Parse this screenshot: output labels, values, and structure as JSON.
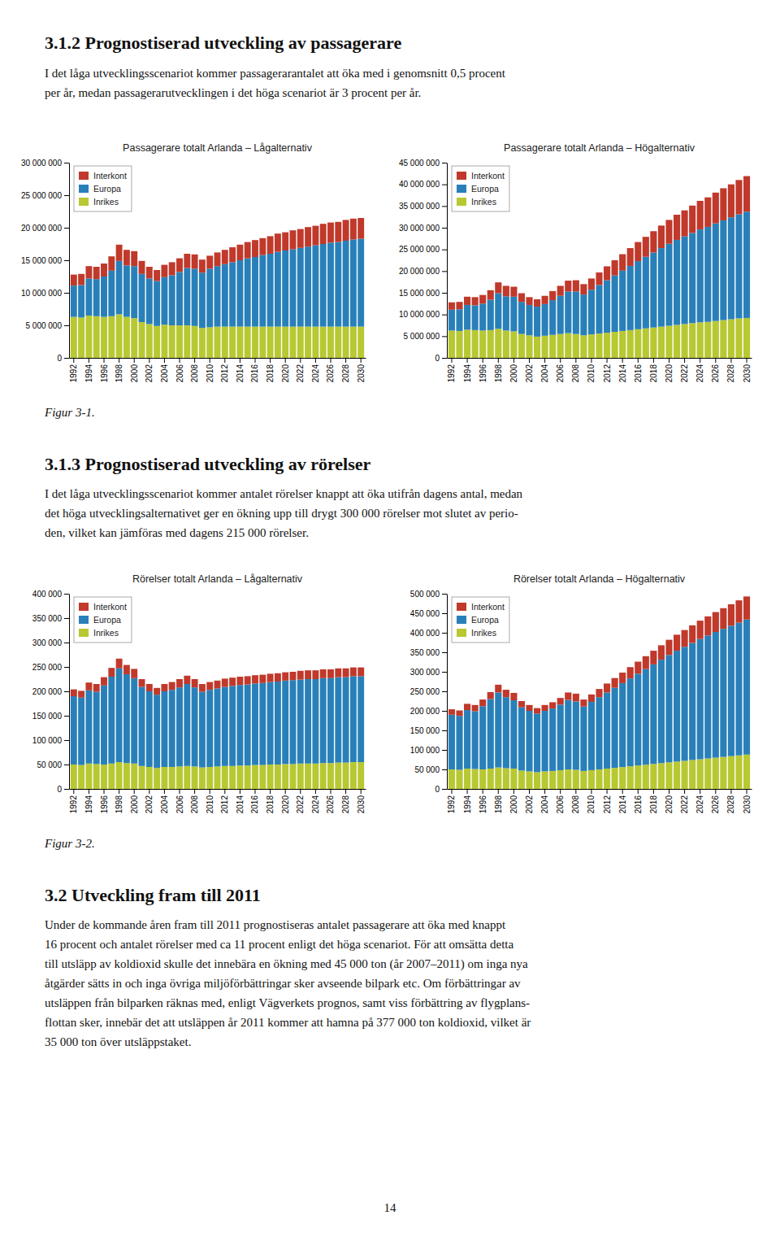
{
  "chart_data": [
    {
      "type": "bar",
      "title": "Passagerare totalt Arlanda – Lågalternativ",
      "categories": [
        "1992",
        null,
        "1994",
        null,
        "1996",
        null,
        "1998",
        null,
        "2000",
        null,
        "2002",
        null,
        "2004",
        null,
        "2006",
        null,
        "2008",
        null,
        "2010",
        null,
        "2012",
        null,
        "2014",
        null,
        "2016",
        null,
        "2018",
        null,
        "2020",
        null,
        "2022",
        null,
        "2024",
        null,
        "2026",
        null,
        "2028",
        null,
        "2030"
      ],
      "series": [
        {
          "name": "Inrikes",
          "color": "#b8c832",
          "values": [
            6300000,
            6200000,
            6500000,
            6400000,
            6300000,
            6400000,
            6700000,
            6300000,
            6100000,
            5500000,
            5200000,
            4900000,
            5100000,
            5000000,
            5000000,
            5000000,
            4900000,
            4600000,
            4700000,
            4800000,
            4800000,
            4800000,
            4800000,
            4800000,
            4800000,
            4800000,
            4800000,
            4800000,
            4800000,
            4800000,
            4800000,
            4800000,
            4800000,
            4800000,
            4800000,
            4800000,
            4800000,
            4800000,
            4800000
          ]
        },
        {
          "name": "Europa",
          "color": "#2980b9",
          "values": [
            4800000,
            5000000,
            5700000,
            5700000,
            6200000,
            7000000,
            8200000,
            7900000,
            8000000,
            7400000,
            7000000,
            6900000,
            7300000,
            7700000,
            8200000,
            8800000,
            8800000,
            8500000,
            9000000,
            9300000,
            9600000,
            9900000,
            10200000,
            10500000,
            10700000,
            11000000,
            11200000,
            11500000,
            11700000,
            11900000,
            12100000,
            12300000,
            12500000,
            12700000,
            12900000,
            13000000,
            13200000,
            13400000,
            13500000
          ]
        },
        {
          "name": "Interkont",
          "color": "#c0392b",
          "values": [
            1700000,
            1700000,
            1900000,
            1900000,
            2000000,
            2200000,
            2500000,
            2400000,
            2300000,
            2000000,
            1800000,
            1700000,
            1900000,
            2000000,
            2100000,
            2200000,
            2200000,
            2000000,
            2000000,
            2100000,
            2200000,
            2300000,
            2400000,
            2500000,
            2600000,
            2600000,
            2700000,
            2800000,
            2800000,
            2900000,
            2900000,
            3000000,
            3000000,
            3100000,
            3100000,
            3100000,
            3200000,
            3200000,
            3200000
          ]
        }
      ],
      "ylim": [
        0,
        30000000
      ],
      "yticks": [
        0,
        {
          "value": 5000000,
          "label": "5 000 000"
        },
        {
          "value": 10000000,
          "label": "10 000 000"
        },
        {
          "value": 15000000,
          "label": "15 000 000"
        },
        {
          "value": 20000000,
          "label": "20 000 000"
        },
        {
          "value": 25000000,
          "label": "25 000 000"
        },
        {
          "value": 30000000,
          "label": "30 000 000"
        }
      ],
      "stacked": true,
      "legend": "upper left",
      "grid": false
    },
    {
      "type": "bar",
      "title": "Passagerare totalt Arlanda – Högalternativ",
      "categories": [
        "1992",
        null,
        "1994",
        null,
        "1996",
        null,
        "1998",
        null,
        "2000",
        null,
        "2002",
        null,
        "2004",
        null,
        "2006",
        null,
        "2008",
        null,
        "2010",
        null,
        "2012",
        null,
        "2014",
        null,
        "2016",
        null,
        "2018",
        null,
        "2020",
        null,
        "2022",
        null,
        "2024",
        null,
        "2026",
        null,
        "2028",
        null,
        "2030"
      ],
      "series": [
        {
          "name": "Inrikes",
          "color": "#b8c832",
          "values": [
            6300000,
            6200000,
            6500000,
            6400000,
            6300000,
            6400000,
            6700000,
            6300000,
            6100000,
            5500000,
            5200000,
            4900000,
            5100000,
            5300000,
            5500000,
            5700000,
            5500000,
            5200000,
            5400000,
            5600000,
            5800000,
            6000000,
            6200000,
            6400000,
            6600000,
            6800000,
            7000000,
            7200000,
            7400000,
            7600000,
            7800000,
            8000000,
            8200000,
            8300000,
            8500000,
            8700000,
            8900000,
            9100000,
            9200000
          ]
        },
        {
          "name": "Europa",
          "color": "#2980b9",
          "values": [
            4800000,
            5000000,
            5700000,
            5700000,
            6200000,
            7000000,
            8200000,
            7900000,
            8000000,
            7400000,
            7000000,
            6900000,
            7300000,
            8000000,
            8800000,
            9600000,
            9800000,
            9400000,
            10300000,
            11200000,
            12100000,
            13000000,
            13900000,
            14800000,
            15700000,
            16500000,
            17300000,
            18100000,
            18900000,
            19600000,
            20200000,
            20800000,
            21400000,
            21900000,
            22500000,
            23000000,
            23500000,
            24000000,
            24500000
          ]
        },
        {
          "name": "Interkont",
          "color": "#c0392b",
          "values": [
            1700000,
            1700000,
            1900000,
            1900000,
            2000000,
            2200000,
            2500000,
            2400000,
            2300000,
            2000000,
            1800000,
            1700000,
            1900000,
            2100000,
            2300000,
            2500000,
            2600000,
            2400000,
            2600000,
            2900000,
            3200000,
            3500000,
            3800000,
            4100000,
            4400000,
            4600000,
            4900000,
            5200000,
            5500000,
            5800000,
            6000000,
            6300000,
            6600000,
            6800000,
            7100000,
            7400000,
            7600000,
            7900000,
            8200000
          ]
        }
      ],
      "ylim": [
        0,
        45000000
      ],
      "yticks": [
        0,
        {
          "value": 5000000,
          "label": "5 000 000"
        },
        {
          "value": 10000000,
          "label": "10 000 000"
        },
        {
          "value": 15000000,
          "label": "15 000 000"
        },
        {
          "value": 20000000,
          "label": "20 000 000"
        },
        {
          "value": 25000000,
          "label": "25 000 000"
        },
        {
          "value": 30000000,
          "label": "30 000 000"
        },
        {
          "value": 35000000,
          "label": "35 000 000"
        },
        {
          "value": 40000000,
          "label": "40 000 000"
        },
        {
          "value": 45000000,
          "label": "45 000 000"
        }
      ],
      "stacked": true,
      "legend": "upper left",
      "grid": false
    },
    {
      "type": "bar",
      "title": "Rörelser totalt Arlanda – Lågalternativ",
      "categories": [
        "1992",
        null,
        "1994",
        null,
        "1996",
        null,
        "1998",
        null,
        "2000",
        null,
        "2002",
        null,
        "2004",
        null,
        "2006",
        null,
        "2008",
        null,
        "2010",
        null,
        "2012",
        null,
        "2014",
        null,
        "2016",
        null,
        "2018",
        null,
        "2020",
        null,
        "2022",
        null,
        "2024",
        null,
        "2026",
        null,
        "2028",
        null,
        "2030"
      ],
      "series": [
        {
          "name": "Inrikes",
          "color": "#b8c832",
          "values": [
            50000,
            49000,
            52000,
            51000,
            50000,
            52000,
            55000,
            53000,
            52000,
            47000,
            45000,
            43000,
            45000,
            45000,
            46000,
            47000,
            46000,
            44000,
            45000,
            46000,
            47000,
            47000,
            48000,
            48000,
            49000,
            49000,
            50000,
            50000,
            51000,
            51000,
            52000,
            52000,
            52000,
            53000,
            53000,
            54000,
            54000,
            55000,
            55000
          ]
        },
        {
          "name": "Europa",
          "color": "#2980b9",
          "values": [
            140000,
            138000,
            150000,
            148000,
            162000,
            178000,
            192000,
            182000,
            175000,
            162000,
            155000,
            150000,
            155000,
            158000,
            162000,
            168000,
            162000,
            155000,
            158000,
            160000,
            162000,
            164000,
            165000,
            166000,
            167000,
            168000,
            169000,
            170000,
            171000,
            172000,
            172000,
            173000,
            173000,
            174000,
            174000,
            175000,
            175000,
            176000,
            176000
          ]
        },
        {
          "name": "Interkont",
          "color": "#c0392b",
          "values": [
            14000,
            14000,
            16000,
            16000,
            17000,
            18000,
            20000,
            19000,
            19000,
            16000,
            15000,
            14000,
            15000,
            16000,
            17000,
            17000,
            17000,
            16000,
            16000,
            16000,
            17000,
            17000,
            17000,
            17000,
            17000,
            17000,
            17000,
            17000,
            17000,
            17000,
            18000,
            18000,
            18000,
            18000,
            18000,
            18000,
            18000,
            18000,
            18000
          ]
        }
      ],
      "ylim": [
        0,
        400000
      ],
      "yticks": [
        0,
        {
          "value": 50000,
          "label": "50 000"
        },
        {
          "value": 100000,
          "label": "100 000"
        },
        {
          "value": 150000,
          "label": "150 000"
        },
        {
          "value": 200000,
          "label": "200 000"
        },
        {
          "value": 250000,
          "label": "250 000"
        },
        {
          "value": 300000,
          "label": "300 000"
        },
        {
          "value": 350000,
          "label": "350 000"
        },
        {
          "value": 400000,
          "label": "400 000"
        }
      ],
      "stacked": true,
      "legend": "upper left",
      "grid": false
    },
    {
      "type": "bar",
      "title": "Rörelser totalt Arlanda – Högalternativ",
      "categories": [
        "1992",
        null,
        "1994",
        null,
        "1996",
        null,
        "1998",
        null,
        "2000",
        null,
        "2002",
        null,
        "2004",
        null,
        "2006",
        null,
        "2008",
        null,
        "2010",
        null,
        "2012",
        null,
        "2014",
        null,
        "2016",
        null,
        "2018",
        null,
        "2020",
        null,
        "2022",
        null,
        "2024",
        null,
        "2026",
        null,
        "2028",
        null,
        "2030"
      ],
      "series": [
        {
          "name": "Inrikes",
          "color": "#b8c832",
          "values": [
            50000,
            49000,
            52000,
            51000,
            50000,
            52000,
            55000,
            53000,
            52000,
            47000,
            45000,
            43000,
            45000,
            46000,
            48000,
            50000,
            49000,
            46000,
            48000,
            50000,
            52000,
            54000,
            56000,
            58000,
            60000,
            62000,
            64000,
            66000,
            68000,
            70000,
            72000,
            74000,
            76000,
            78000,
            80000,
            82000,
            84000,
            86000,
            88000
          ]
        },
        {
          "name": "Europa",
          "color": "#2980b9",
          "values": [
            140000,
            138000,
            150000,
            148000,
            162000,
            178000,
            192000,
            182000,
            175000,
            162000,
            155000,
            150000,
            155000,
            160000,
            168000,
            178000,
            175000,
            165000,
            175000,
            185000,
            195000,
            205000,
            215000,
            225000,
            235000,
            245000,
            255000,
            265000,
            275000,
            284000,
            292000,
            300000,
            308000,
            315000,
            322000,
            328000,
            334000,
            340000,
            346000
          ]
        },
        {
          "name": "Interkont",
          "color": "#c0392b",
          "values": [
            14000,
            14000,
            16000,
            16000,
            17000,
            18000,
            20000,
            19000,
            19000,
            16000,
            15000,
            14000,
            15000,
            16000,
            17000,
            19000,
            20000,
            18000,
            19000,
            21000,
            23000,
            25000,
            27000,
            29000,
            31000,
            33000,
            35000,
            37000,
            39000,
            41000,
            43000,
            45000,
            47000,
            49000,
            51000,
            53000,
            55000,
            57000,
            59000
          ]
        }
      ],
      "ylim": [
        0,
        500000
      ],
      "yticks": [
        0,
        {
          "value": 50000,
          "label": "50 000"
        },
        {
          "value": 100000,
          "label": "100 000"
        },
        {
          "value": 150000,
          "label": "150 000"
        },
        {
          "value": 200000,
          "label": "200 000"
        },
        {
          "value": 250000,
          "label": "250 000"
        },
        {
          "value": 300000,
          "label": "300 000"
        },
        {
          "value": 350000,
          "label": "350 000"
        },
        {
          "value": 400000,
          "label": "400 000"
        },
        {
          "value": 450000,
          "label": "450 000"
        },
        {
          "value": 500000,
          "label": "500 000"
        }
      ],
      "stacked": true,
      "legend": "upper left",
      "grid": false
    }
  ],
  "annotations": [
    "3.1.2   Prognostiserad utveckling av passagerare",
    "I det låga utvecklingsscenariot kommer passagerarantalet att öka med i genomsnitt 0,5 procent\nper år, medan passagerarutvecklingen i det höga scenariot är 3 procent per år.",
    "Figur 3-1.",
    "3.1.3   Prognostiserad utveckling av rörelser",
    "I det låga utvecklingsscenariot kommer antalet rörelser knappt att öka utifrån dagens antal, medan\ndet höga utvecklingsalternativet ger en ökning upp till drygt 300 000 rörelser mot slutet av perio-\nden, vilket kan jämföras med dagens 215 000 rörelser.",
    "Figur 3-2.",
    "3.2   Utveckling fram till 2011",
    "Under de kommande åren fram till 2011 prognostiseras antalet passagerare att öka med knappt\n16 procent och antalet rörelser med ca 11 procent enligt det höga scenariot. För att omsätta detta\ntill utsläpp av koldioxid skulle det innebära en ökning med 45 000 ton (år 2007–2011) om inga nya\nåtgärder sätts in och inga övriga miljöförbättringar sker avseende bilpark etc. Om förbättringar av\nutsläppen från bilparken räknas med, enligt Vägverkets prognos, samt viss förbättring av flygplans-\nflottan sker, innebär det att utsläppen år 2011 kommer att hamna på 377 000 ton koldioxid, vilket är\n35 000 ton över utsläppstaket.",
    "14"
  ]
}
